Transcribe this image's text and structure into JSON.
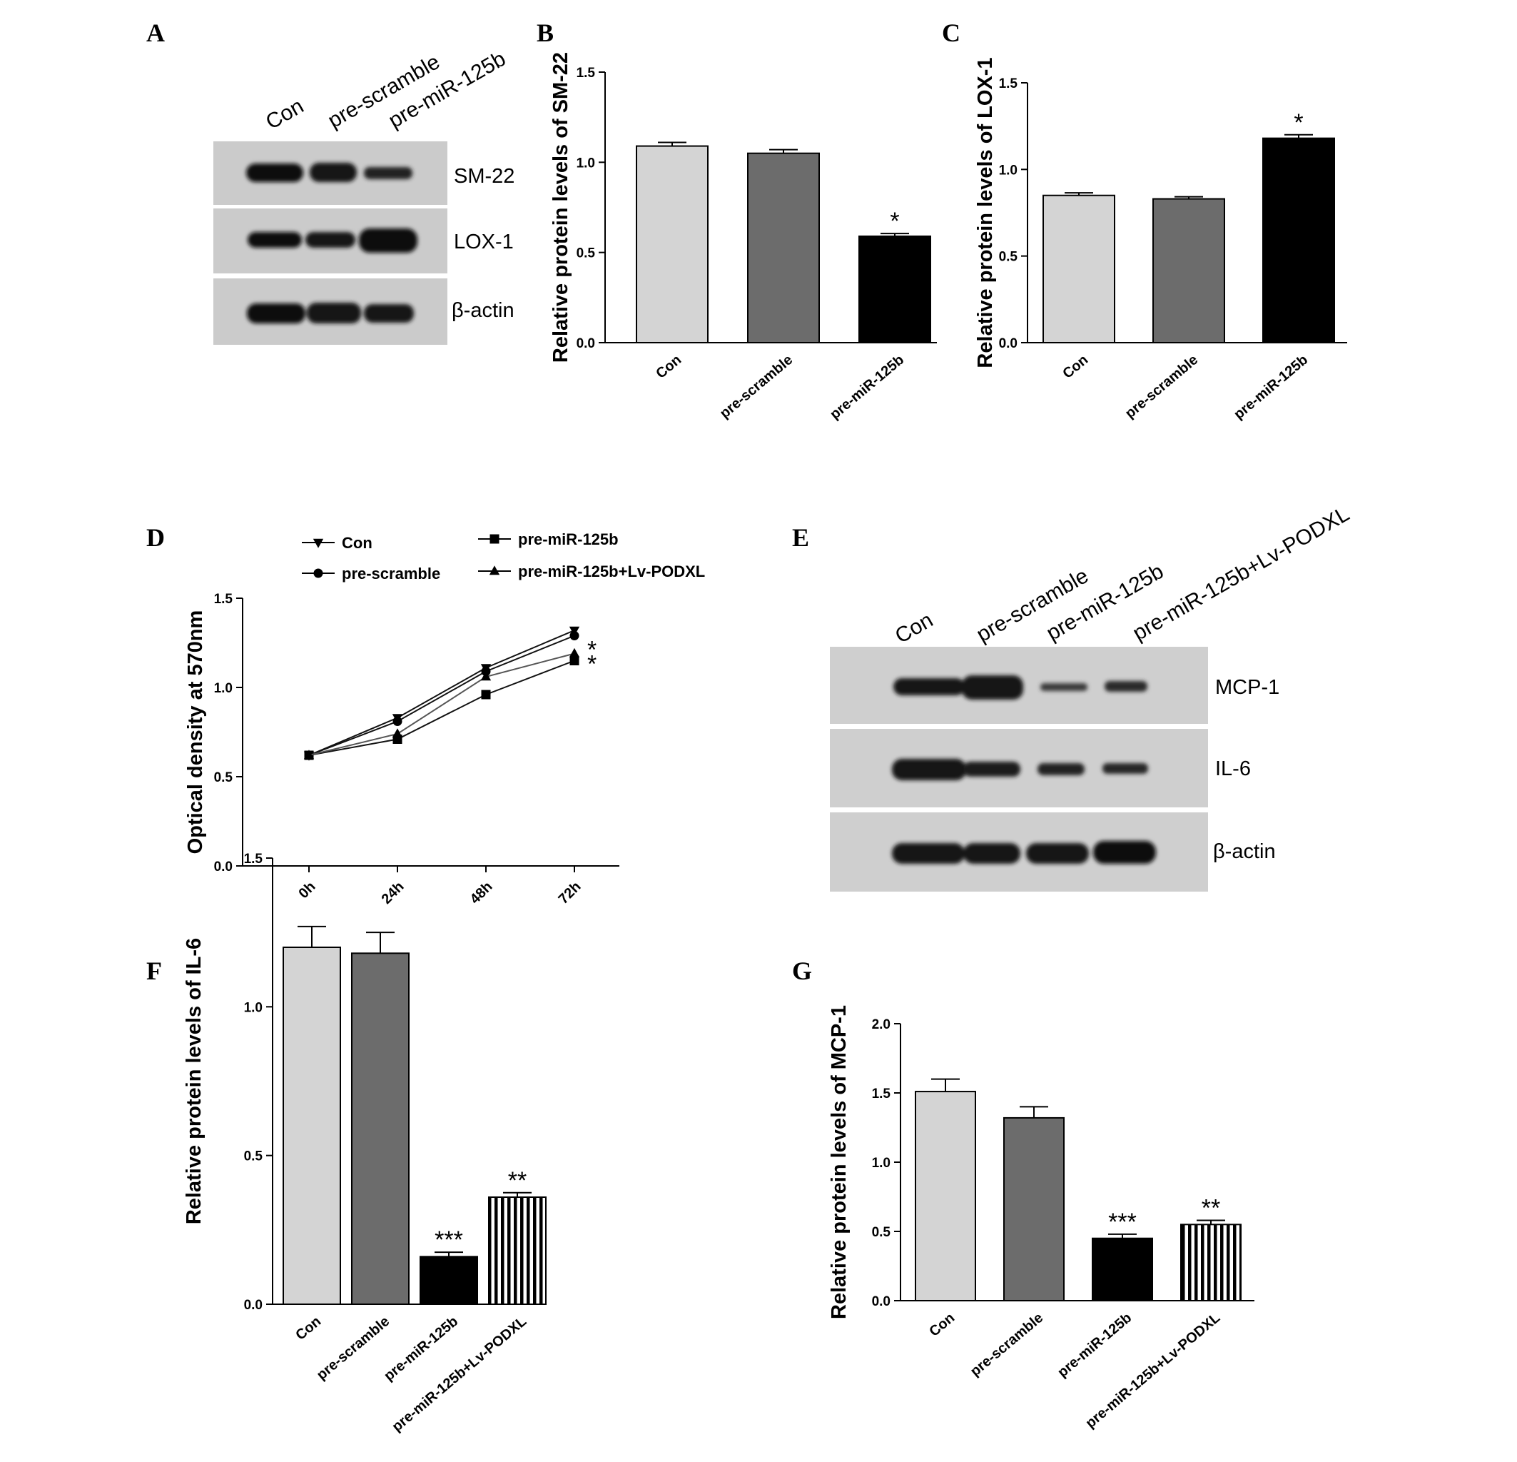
{
  "panels": {
    "A": {
      "letter": "A",
      "lanes": [
        "Con",
        "pre-scramble",
        "pre-miR-125b"
      ],
      "bands": [
        "SM-22",
        "LOX-1",
        "β-actin"
      ]
    },
    "E": {
      "letter": "E",
      "lanes": [
        "Con",
        "pre-scramble",
        "pre-miR-125b",
        "pre-miR-125b+Lv-PODXL"
      ],
      "bands": [
        "MCP-1",
        "IL-6",
        "β-actin"
      ]
    }
  },
  "colors": {
    "light": "#d4d4d4",
    "dark": "#6c6c6c",
    "black": "#000000",
    "striped": "striped"
  },
  "chart_data": [
    {
      "id": "B",
      "letter": "B",
      "type": "bar",
      "categories": [
        "Con",
        "pre-scramble",
        "pre-miR-125b"
      ],
      "values": [
        1.09,
        1.05,
        0.59
      ],
      "errors": [
        0.02,
        0.02,
        0.015
      ],
      "annotations": [
        "",
        "",
        "*"
      ],
      "ylabel": "Relative protein levels of SM-22",
      "ylim": [
        0,
        1.5
      ],
      "yticks": [
        "0.0",
        "0.5",
        "1.0",
        "1.5"
      ],
      "fills": [
        "light",
        "dark",
        "black"
      ]
    },
    {
      "id": "C",
      "letter": "C",
      "type": "bar",
      "categories": [
        "Con",
        "pre-scramble",
        "pre-miR-125b"
      ],
      "values": [
        0.85,
        0.83,
        1.18
      ],
      "errors": [
        0.015,
        0.012,
        0.02
      ],
      "annotations": [
        "",
        "",
        "*"
      ],
      "ylabel": "Relative protein levels of LOX-1",
      "ylim": [
        0,
        1.5
      ],
      "yticks": [
        "0.0",
        "0.5",
        "1.0",
        "1.5"
      ],
      "fills": [
        "light",
        "dark",
        "black"
      ]
    },
    {
      "id": "D",
      "letter": "D",
      "type": "line",
      "categories": [
        "0h",
        "24h",
        "48h",
        "72h"
      ],
      "series": [
        {
          "name": "Con",
          "marker": "triangle-down",
          "values": [
            0.62,
            0.83,
            1.11,
            1.32
          ],
          "errors": [
            0.015,
            0.02,
            0.02,
            0.02
          ]
        },
        {
          "name": "pre-scramble",
          "marker": "circle",
          "values": [
            0.62,
            0.81,
            1.09,
            1.29
          ],
          "errors": [
            0.015,
            0.02,
            0.02,
            0.02
          ]
        },
        {
          "name": "pre-miR-125b",
          "marker": "square",
          "values": [
            0.62,
            0.71,
            0.96,
            1.15
          ],
          "errors": [
            0.015,
            0.015,
            0.015,
            0.015
          ]
        },
        {
          "name": "pre-miR-125b+Lv-PODXL",
          "marker": "triangle-up",
          "values": [
            0.62,
            0.74,
            1.06,
            1.19
          ],
          "errors": [
            0.015,
            0.02,
            0.02,
            0.02
          ]
        }
      ],
      "annotations": [
        "*",
        "*"
      ],
      "ylabel": "Optical density at 570nm",
      "ylim": [
        0,
        1.5
      ],
      "yticks": [
        "0.0",
        "0.5",
        "1.0",
        "1.5"
      ]
    },
    {
      "id": "F",
      "letter": "F",
      "type": "bar",
      "categories": [
        "Con",
        "pre-scramble",
        "pre-miR-125b",
        "pre-miR-125b+Lv-PODXL"
      ],
      "values": [
        1.2,
        1.18,
        0.16,
        0.36
      ],
      "errors": [
        0.07,
        0.07,
        0.015,
        0.015
      ],
      "annotations": [
        "",
        "",
        "***",
        "**"
      ],
      "ylabel": "Relative protein levels of IL-6",
      "ylim": [
        0,
        1.5
      ],
      "yticks": [
        "0.0",
        "0.5",
        "1.0",
        "1.5"
      ],
      "fills": [
        "light",
        "dark",
        "black",
        "striped"
      ]
    },
    {
      "id": "G",
      "letter": "G",
      "type": "bar",
      "categories": [
        "Con",
        "pre-scramble",
        "pre-miR-125b",
        "pre-miR-125b+Lv-PODXL"
      ],
      "values": [
        1.51,
        1.32,
        0.45,
        0.55
      ],
      "errors": [
        0.09,
        0.08,
        0.03,
        0.03
      ],
      "annotations": [
        "",
        "",
        "***",
        "**"
      ],
      "ylabel": "Relative protein levels of MCP-1",
      "ylim": [
        0,
        2.0
      ],
      "yticks": [
        "0.0",
        "0.5",
        "1.0",
        "1.5",
        "2.0"
      ],
      "fills": [
        "light",
        "dark",
        "black",
        "striped"
      ]
    }
  ]
}
